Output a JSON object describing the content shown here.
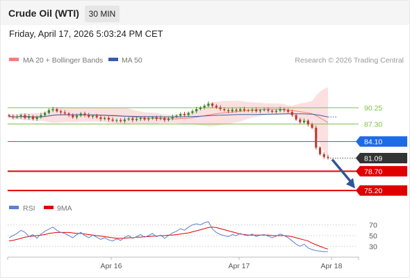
{
  "header": {
    "instrument": "Crude Oil (WTI)",
    "interval": "30 MIN"
  },
  "datetime": "Friday, April 17, 2026 5:03:24 PM CET",
  "copyright": "Research © 2026 Trading Central",
  "colors": {
    "candle_up": "#2e8b2e",
    "candle_down": "#c0392b",
    "bollinger_band": "#fbd5d5",
    "ma20": "#f08080",
    "ma50": "#3a5ca8",
    "resistance": "#7cbf4a",
    "pivot": "#1e6be6",
    "support": "#e00000",
    "last_price": "#333333",
    "rsi": "#5b7fd6",
    "rsi_ma": "#e00000",
    "arrow": "#2f5597"
  },
  "chart_data": [
    {
      "type": "candlestick",
      "title": "",
      "legend": [
        {
          "name": "MA 20 + Bollinger Bands",
          "color": "#f08080"
        },
        {
          "name": "MA 50",
          "color": "#3a5ca8"
        }
      ],
      "legend_position": "top-left",
      "x_ticks": [
        "Apr 16",
        "Apr 17",
        "Apr 18"
      ],
      "ylim": [
        74.2,
        97.2
      ],
      "levels": [
        {
          "label": "90.25",
          "value": 90.25,
          "kind": "resistance"
        },
        {
          "label": "87.30",
          "value": 87.3,
          "kind": "resistance"
        },
        {
          "label": "84.10",
          "value": 84.1,
          "kind": "pivot"
        },
        {
          "label": "81.09",
          "value": 81.09,
          "kind": "last"
        },
        {
          "label": "78.70",
          "value": 78.7,
          "kind": "support"
        },
        {
          "label": "75.20",
          "value": 75.2,
          "kind": "support"
        }
      ],
      "close": [
        88.7,
        88.5,
        88.6,
        88.9,
        88.4,
        88.7,
        88.2,
        88.5,
        88.9,
        89.3,
        89.8,
        90.0,
        89.6,
        89.4,
        89.2,
        88.9,
        88.5,
        88.8,
        89.2,
        88.9,
        88.6,
        88.8,
        88.5,
        88.2,
        88.4,
        88.1,
        87.9,
        88.0,
        87.8,
        88.1,
        88.3,
        88.0,
        88.2,
        88.4,
        88.1,
        88.3,
        88.5,
        88.2,
        88.4,
        88.0,
        88.3,
        88.6,
        88.8,
        89.1,
        88.9,
        89.3,
        89.6,
        90.0,
        90.3,
        90.6,
        91.0,
        90.6,
        90.3,
        90.0,
        89.8,
        89.6,
        89.9,
        89.7,
        90.0,
        89.8,
        89.7,
        89.9,
        89.6,
        89.8,
        89.9,
        89.7,
        89.5,
        89.7,
        90.0,
        89.8,
        89.5,
        88.9,
        88.1,
        87.6,
        87.9,
        87.2,
        86.6,
        83.0,
        81.8,
        81.3,
        81.09
      ],
      "trade_idea": {
        "from": 81.09,
        "to": 75.2
      }
    },
    {
      "type": "line",
      "title": "",
      "legend": [
        {
          "name": "RSI",
          "color": "#5b7fd6"
        },
        {
          "name": "9MA",
          "color": "#e00000"
        }
      ],
      "ylim": [
        15,
        85
      ],
      "y_ticks": [
        70,
        50,
        30
      ],
      "rsi": [
        46,
        50,
        54,
        60,
        56,
        48,
        52,
        45,
        53,
        58,
        62,
        66,
        60,
        56,
        54,
        50,
        46,
        52,
        56,
        50,
        46,
        51,
        47,
        43,
        46,
        42,
        40,
        44,
        41,
        47,
        50,
        45,
        48,
        52,
        47,
        50,
        54,
        48,
        51,
        45,
        50,
        55,
        58,
        63,
        60,
        66,
        70,
        72,
        70,
        74,
        76,
        62,
        56,
        52,
        50,
        48,
        52,
        50,
        54,
        51,
        50,
        53,
        48,
        51,
        52,
        49,
        46,
        49,
        53,
        50,
        46,
        40,
        34,
        30,
        34,
        27,
        24,
        22,
        21,
        20,
        20
      ],
      "rsi_ma": [
        40,
        41,
        43,
        45,
        47,
        48,
        49,
        50,
        51,
        52,
        54,
        55,
        56,
        56,
        56,
        56,
        55,
        54,
        54,
        53,
        52,
        51,
        50,
        49,
        48,
        47,
        46,
        45,
        45,
        45,
        46,
        46,
        47,
        47,
        48,
        48,
        49,
        49,
        50,
        50,
        51,
        51,
        52,
        53,
        54,
        55,
        57,
        59,
        61,
        63,
        65,
        66,
        65,
        63,
        61,
        59,
        57,
        55,
        53,
        52,
        51,
        51,
        51,
        51,
        51,
        51,
        50,
        50,
        50,
        50,
        49,
        48,
        46,
        44,
        42,
        40,
        36,
        33,
        30,
        27,
        25
      ]
    }
  ]
}
